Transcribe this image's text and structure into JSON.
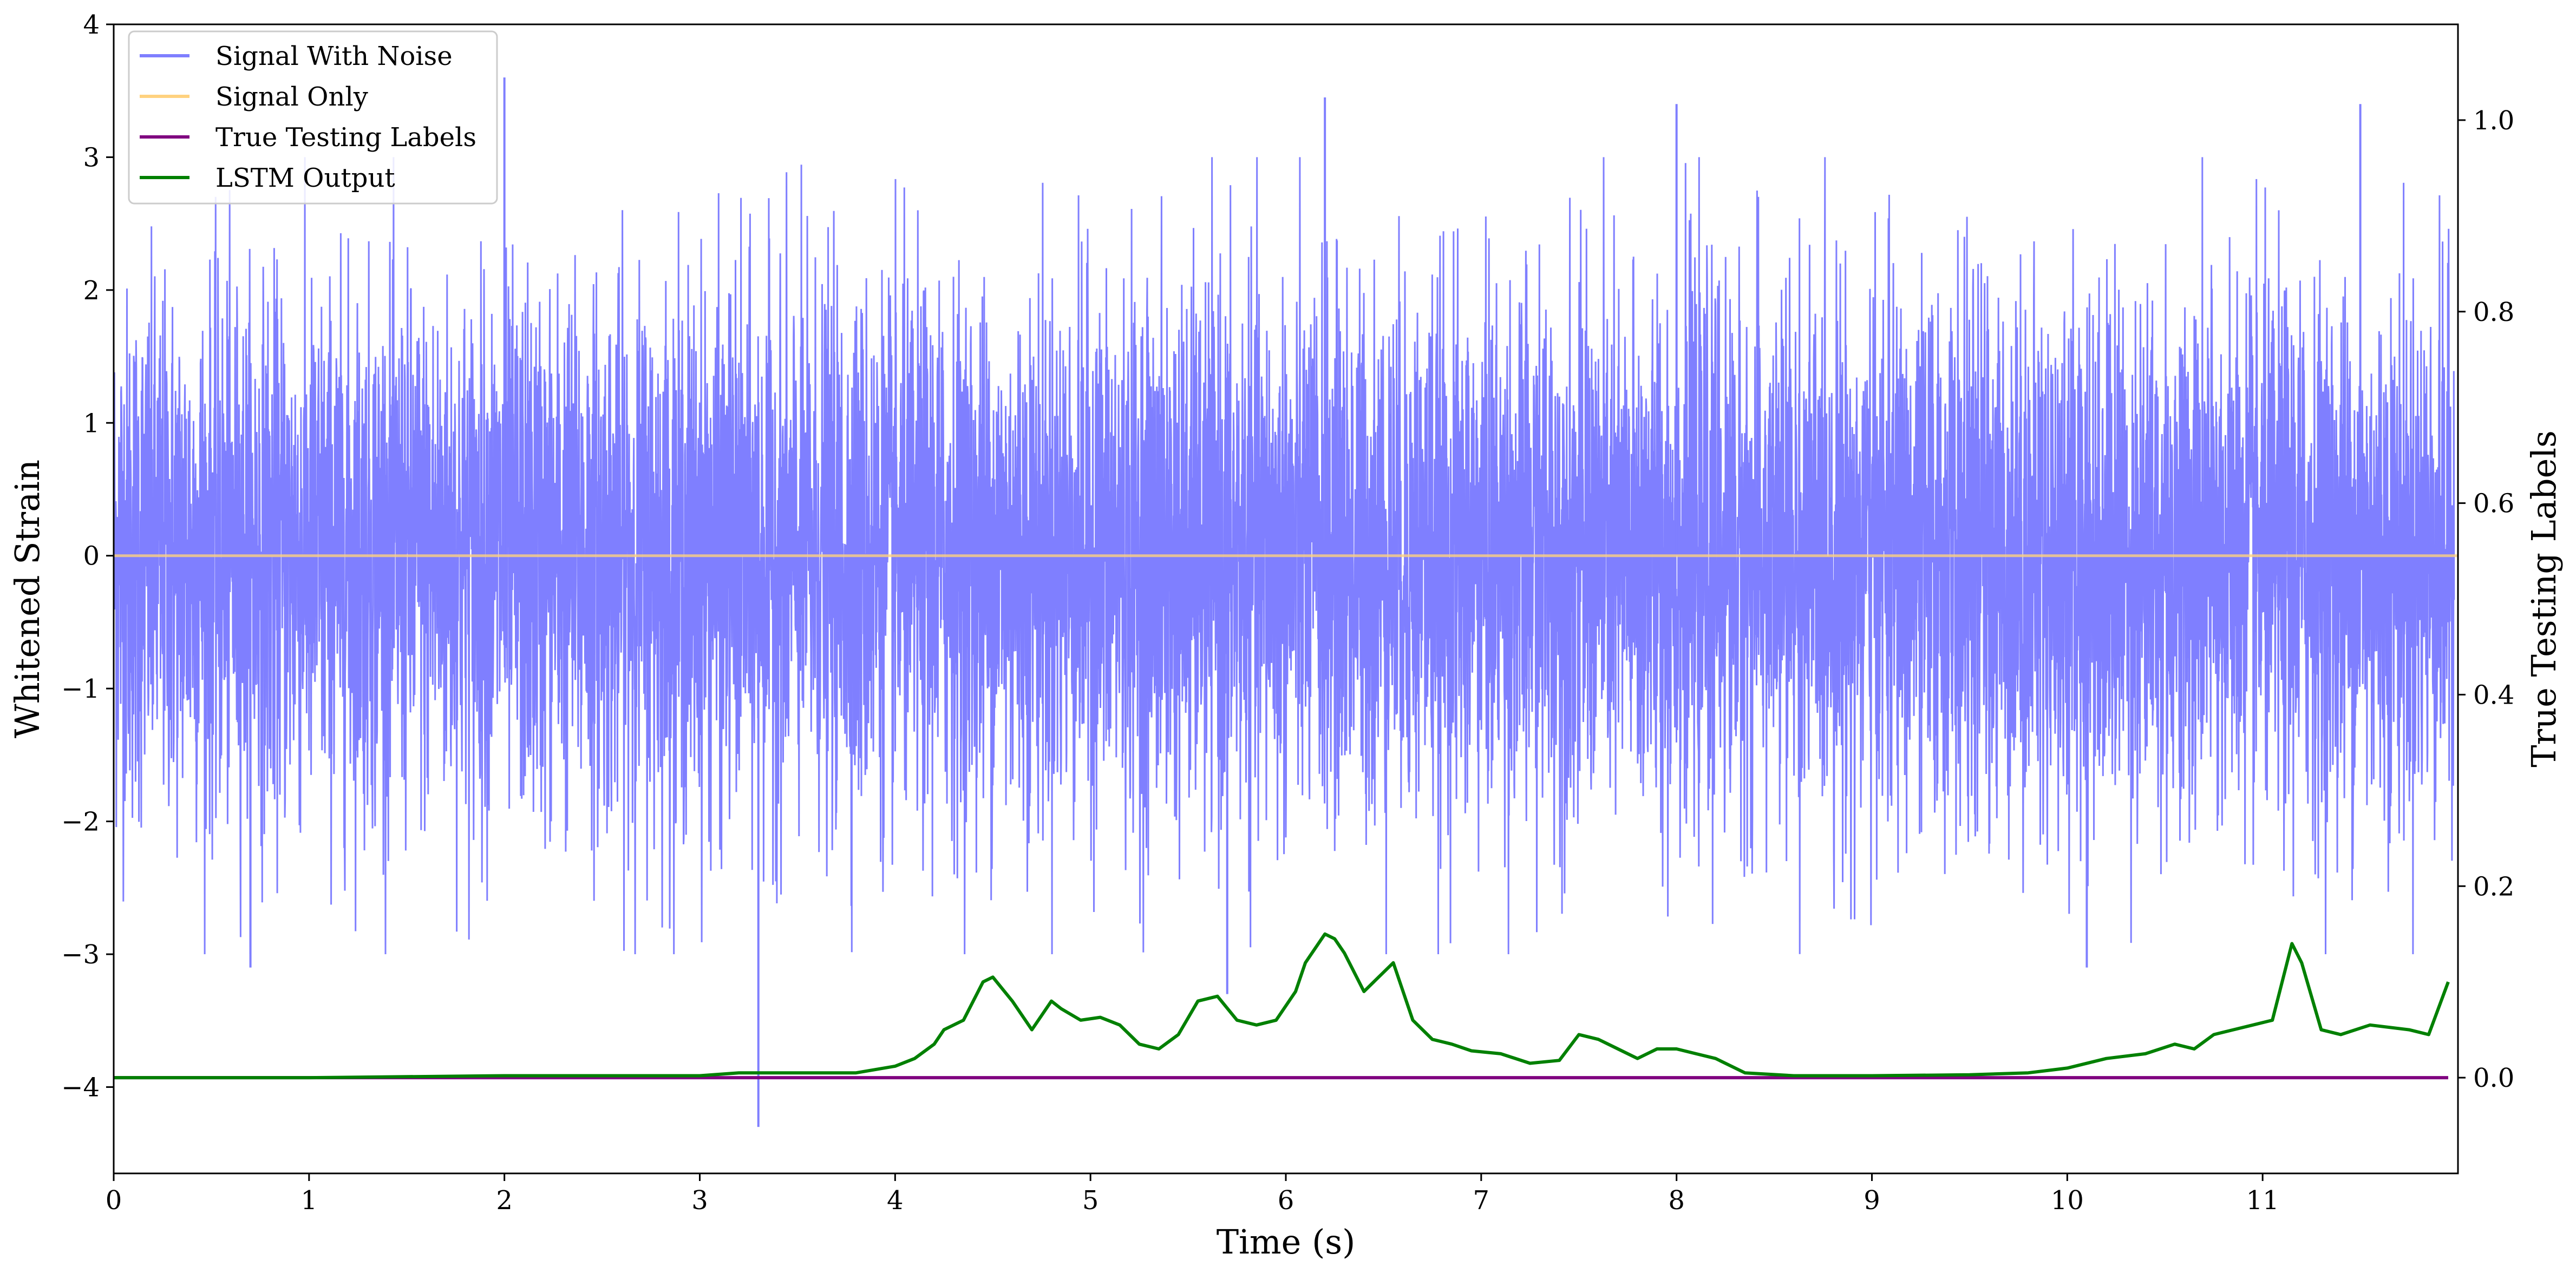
{
  "chart_data": {
    "type": "line",
    "xlabel": "Time (s)",
    "ylabel_left": "Whitened Strain",
    "ylabel_right": "True Testing Labels",
    "xlim": [
      0,
      12
    ],
    "ylim_left": [
      -4.65,
      4.0
    ],
    "ylim_right": [
      -0.1,
      1.1
    ],
    "x_ticks": [
      "0",
      "1",
      "2",
      "3",
      "4",
      "5",
      "6",
      "7",
      "8",
      "9",
      "10",
      "11"
    ],
    "y_left_ticks": [
      "−4",
      "−3",
      "−2",
      "−1",
      "0",
      "1",
      "2",
      "3",
      "4"
    ],
    "y_right_ticks": [
      "0.0",
      "0.2",
      "0.4",
      "0.6",
      "0.8",
      "1.0"
    ],
    "grid": false,
    "legend_position": "top-left",
    "colors": {
      "signal_with_noise": "#7f7fff",
      "signal_only": "#ffd27f",
      "true_labels": "#800080",
      "lstm_output": "#008000"
    },
    "series": [
      {
        "name": "Signal With Noise",
        "axis": "left",
        "description_values": {
          "mean": 0.0,
          "typical_envelope": [
            -1.6,
            1.6
          ],
          "spikes": [
            {
              "x": 2.0,
              "y": 3.6
            },
            {
              "x": 3.3,
              "y": -4.3
            },
            {
              "x": 6.2,
              "y": 3.45
            },
            {
              "x": 8.0,
              "y": 3.4
            },
            {
              "x": 11.5,
              "y": 3.4
            },
            {
              "x": 5.7,
              "y": -3.3
            },
            {
              "x": 10.1,
              "y": -3.1
            },
            {
              "x": 0.7,
              "y": -3.1
            }
          ]
        }
      },
      {
        "name": "Signal Only",
        "axis": "left",
        "x": [
          0,
          12
        ],
        "y": [
          0,
          0
        ]
      },
      {
        "name": "True Testing Labels",
        "axis": "right",
        "x": [
          0,
          11.95
        ],
        "y": [
          0,
          0
        ]
      },
      {
        "name": "LSTM Output",
        "axis": "right",
        "x": [
          0,
          1,
          2,
          3,
          3.2,
          3.5,
          3.8,
          4.0,
          4.1,
          4.2,
          4.25,
          4.35,
          4.45,
          4.5,
          4.6,
          4.7,
          4.8,
          4.85,
          4.95,
          5.05,
          5.15,
          5.25,
          5.35,
          5.45,
          5.55,
          5.65,
          5.75,
          5.85,
          5.95,
          6.05,
          6.1,
          6.2,
          6.25,
          6.3,
          6.4,
          6.5,
          6.55,
          6.65,
          6.75,
          6.85,
          6.95,
          7.1,
          7.25,
          7.4,
          7.5,
          7.6,
          7.7,
          7.8,
          7.9,
          8.0,
          8.1,
          8.2,
          8.35,
          8.6,
          9.0,
          9.5,
          9.8,
          10.0,
          10.2,
          10.4,
          10.55,
          10.65,
          10.75,
          10.85,
          10.95,
          11.05,
          11.15,
          11.2,
          11.3,
          11.4,
          11.55,
          11.75,
          11.85,
          11.95
        ],
        "y": [
          0.0,
          0.0,
          0.002,
          0.002,
          0.005,
          0.005,
          0.005,
          0.012,
          0.02,
          0.035,
          0.05,
          0.06,
          0.1,
          0.105,
          0.08,
          0.05,
          0.08,
          0.072,
          0.06,
          0.063,
          0.055,
          0.035,
          0.03,
          0.045,
          0.08,
          0.085,
          0.06,
          0.055,
          0.06,
          0.09,
          0.12,
          0.15,
          0.145,
          0.13,
          0.09,
          0.11,
          0.12,
          0.06,
          0.04,
          0.035,
          0.028,
          0.025,
          0.015,
          0.018,
          0.045,
          0.04,
          0.03,
          0.02,
          0.03,
          0.03,
          0.025,
          0.02,
          0.005,
          0.002,
          0.002,
          0.003,
          0.005,
          0.01,
          0.02,
          0.025,
          0.035,
          0.03,
          0.045,
          0.05,
          0.055,
          0.06,
          0.14,
          0.12,
          0.05,
          0.045,
          0.055,
          0.05,
          0.045,
          0.1
        ]
      }
    ]
  }
}
